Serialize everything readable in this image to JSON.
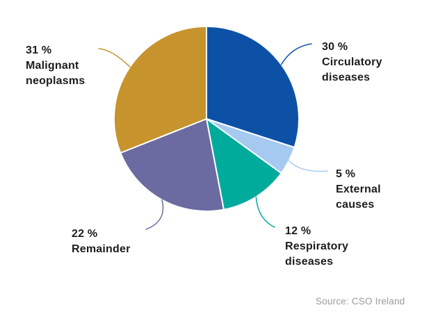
{
  "chart_data": {
    "type": "pie",
    "title": "",
    "start_angle_deg": 0,
    "direction": "clockwise",
    "legend_position": "callout-labels",
    "slices": [
      {
        "label": "Circulatory diseases",
        "value_label": "30 %",
        "percent": 30,
        "color": "#0d51a7"
      },
      {
        "label": "External causes",
        "value_label": "5 %",
        "percent": 5,
        "color": "#a6c9f0"
      },
      {
        "label": "Respiratory diseases",
        "value_label": "12 %",
        "percent": 12,
        "color": "#00ab9b"
      },
      {
        "label": "Remainder",
        "value_label": "22 %",
        "percent": 22,
        "color": "#6b6aa1"
      },
      {
        "label": "Malignant neoplasms",
        "value_label": "31 %",
        "percent": 31,
        "color": "#c6932d"
      }
    ],
    "separator_color": "#ffffff",
    "label_text_color": "#1c1c1c",
    "source": "Source: CSO Ireland"
  }
}
